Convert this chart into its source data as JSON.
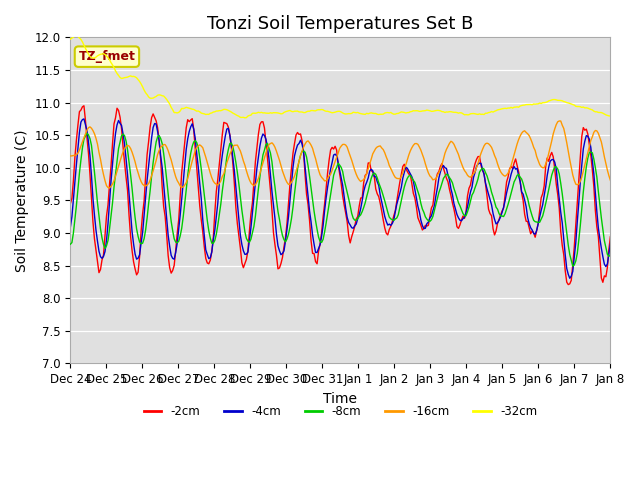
{
  "title": "Tonzi Soil Temperatures Set B",
  "xlabel": "Time",
  "ylabel": "Soil Temperature (C)",
  "ylim": [
    7.0,
    12.0
  ],
  "yticks": [
    7.0,
    7.5,
    8.0,
    8.5,
    9.0,
    9.5,
    10.0,
    10.5,
    11.0,
    11.5,
    12.0
  ],
  "legend_label": "TZ_fmet",
  "series_labels": [
    "-2cm",
    "-4cm",
    "-8cm",
    "-16cm",
    "-32cm"
  ],
  "series_colors": [
    "#ff0000",
    "#0000cc",
    "#00cc00",
    "#ff9900",
    "#ffff00"
  ],
  "line_width": 1.0,
  "xtick_labels": [
    "Dec 24",
    "Dec 25",
    "Dec 26",
    "Dec 27",
    "Dec 28",
    "Dec 29",
    "Dec 30",
    "Dec 31",
    "Jan 1",
    "Jan 2",
    "Jan 3",
    "Jan 4",
    "Jan 5",
    "Jan 6",
    "Jan 7",
    "Jan 8"
  ],
  "title_fontsize": 13,
  "axis_fontsize": 10,
  "tick_fontsize": 8.5
}
